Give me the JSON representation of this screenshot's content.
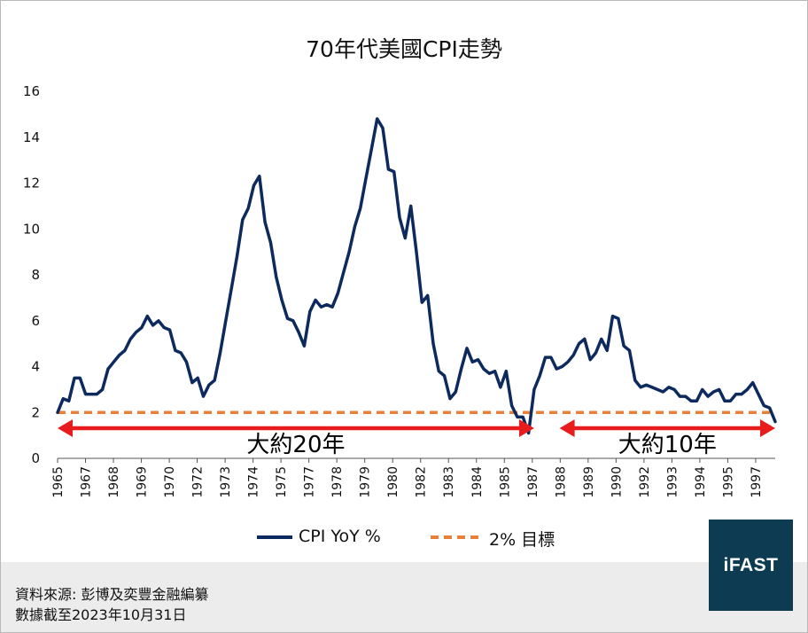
{
  "chart_data": {
    "type": "line",
    "title": "70年代美國CPI走勢",
    "ylim": [
      0,
      16
    ],
    "yticks": [
      0,
      2,
      4,
      6,
      8,
      10,
      12,
      14,
      16
    ],
    "x_tick_labels": [
      "1965",
      "1967",
      "1968",
      "1969",
      "1970",
      "1972",
      "1973",
      "1974",
      "1975",
      "1977",
      "1978",
      "1979",
      "1980",
      "1982",
      "1983",
      "1984",
      "1985",
      "1987",
      "1988",
      "1989",
      "1990",
      "1992",
      "1993",
      "1994",
      "1995",
      "1997"
    ],
    "x_range_months": 396,
    "series": [
      {
        "name": "CPI YoY %",
        "color": "#0d2a5e",
        "values": [
          2.0,
          2.6,
          2.5,
          3.5,
          3.5,
          2.8,
          2.8,
          2.8,
          3.0,
          3.9,
          4.2,
          4.5,
          4.7,
          5.2,
          5.5,
          5.7,
          6.2,
          5.8,
          6.0,
          5.7,
          5.6,
          4.7,
          4.6,
          4.2,
          3.3,
          3.5,
          2.7,
          3.2,
          3.4,
          4.6,
          6.0,
          7.4,
          8.8,
          10.4,
          10.9,
          11.9,
          12.3,
          10.3,
          9.4,
          7.9,
          6.9,
          6.1,
          6.0,
          5.5,
          4.9,
          6.4,
          6.9,
          6.6,
          6.7,
          6.6,
          7.2,
          8.1,
          9.0,
          10.1,
          10.9,
          12.2,
          13.5,
          14.8,
          14.4,
          12.6,
          12.5,
          10.5,
          9.6,
          11.0,
          9.0,
          6.8,
          7.1,
          5.0,
          3.8,
          3.6,
          2.6,
          2.9,
          3.9,
          4.8,
          4.2,
          4.3,
          3.9,
          3.7,
          3.8,
          3.1,
          3.8,
          2.3,
          1.8,
          1.8,
          1.1,
          3.0,
          3.6,
          4.4,
          4.4,
          3.9,
          4.0,
          4.2,
          4.5,
          5.0,
          5.2,
          4.3,
          4.6,
          5.2,
          4.7,
          6.2,
          6.1,
          4.9,
          4.7,
          3.4,
          3.1,
          3.2,
          3.1,
          3.0,
          2.9,
          3.1,
          3.0,
          2.7,
          2.7,
          2.5,
          2.5,
          3.0,
          2.7,
          2.9,
          3.0,
          2.5,
          2.5,
          2.8,
          2.8,
          3.0,
          3.3,
          2.8,
          2.3,
          2.2,
          1.6
        ]
      },
      {
        "name": "2% 目標",
        "color": "#e8803a",
        "style": "dashed",
        "values": [
          2,
          2
        ]
      }
    ],
    "annotations": [
      {
        "text": "大約20年",
        "from_month": 0,
        "to_month": 263
      },
      {
        "text": "大約10年",
        "from_month": 277,
        "to_month": 396
      }
    ],
    "legend": {
      "placement": "bottom",
      "items": [
        "CPI YoY %",
        "2% 目標"
      ]
    }
  },
  "footer": {
    "source_line1": "資料來源: 彭博及奕豐金融編纂",
    "source_line2": "數據截至2023年10月31日"
  },
  "logo": {
    "text": "iFAST"
  },
  "colors": {
    "line": "#0d2a5e",
    "target": "#e8803a",
    "arrow": "#e81c1c",
    "logo_bg": "#0d3c52",
    "footer_bg": "#ececec"
  }
}
